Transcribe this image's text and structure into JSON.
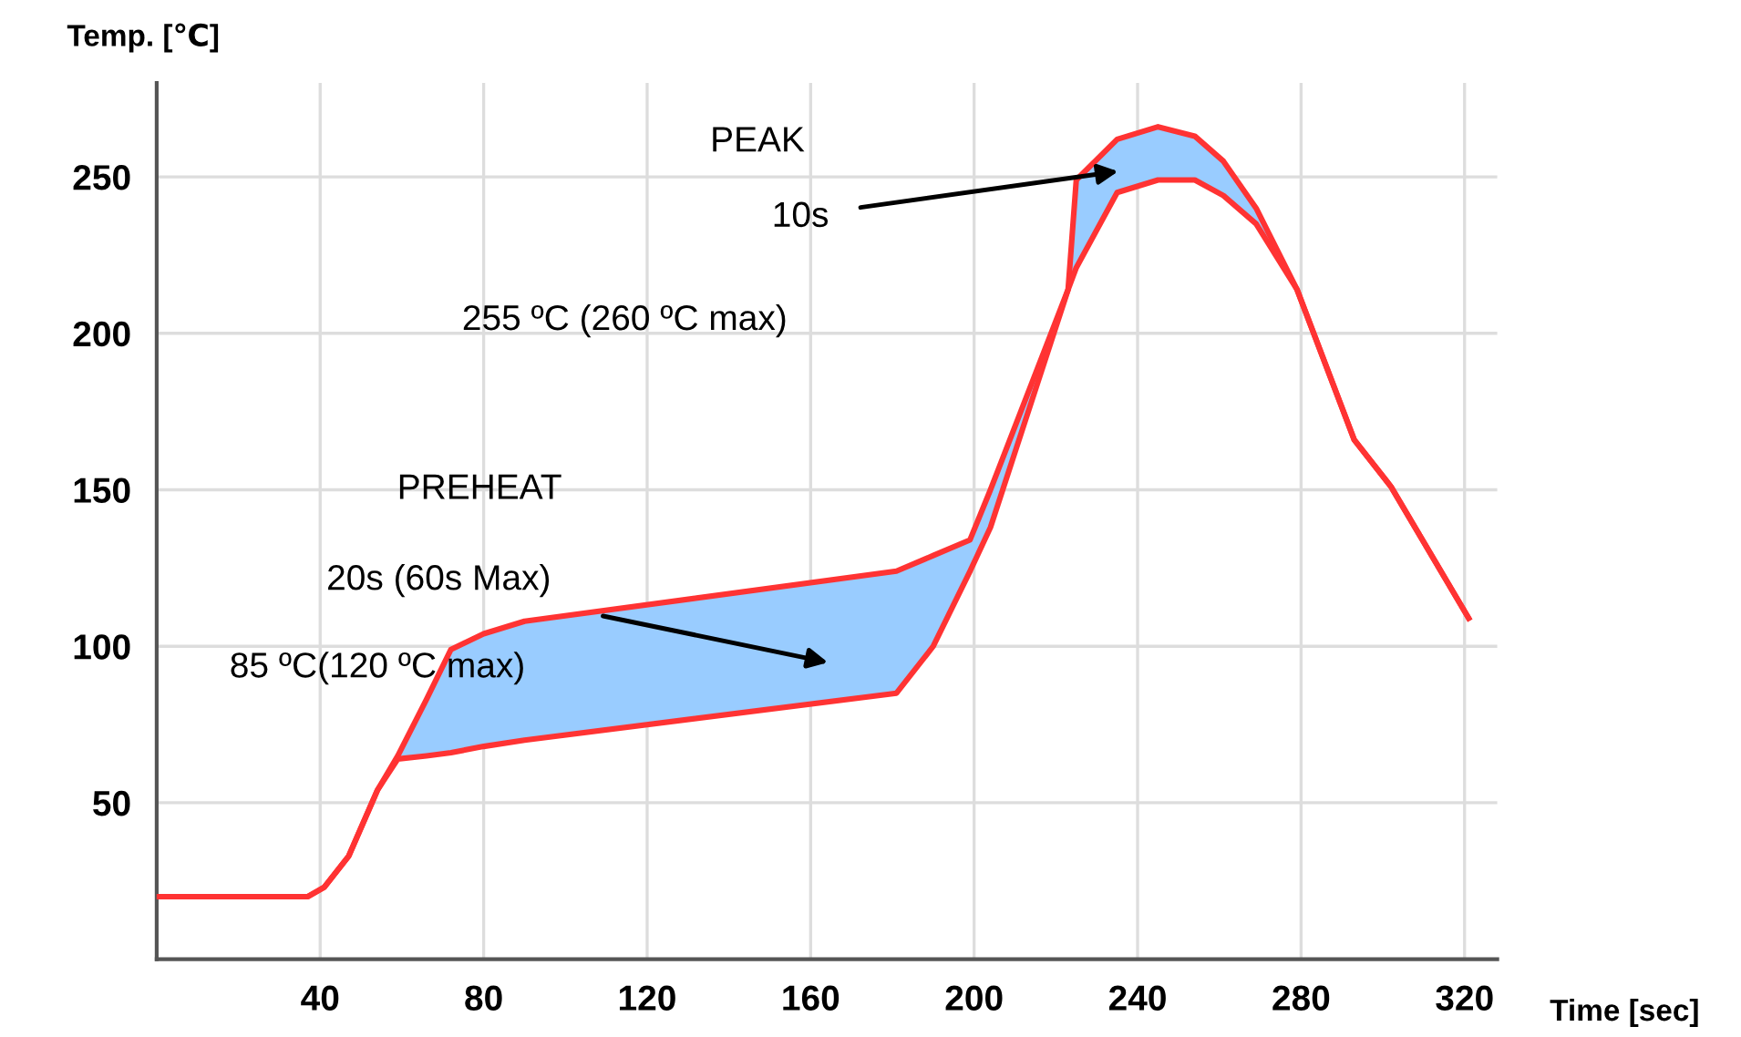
{
  "chart_data": {
    "type": "line",
    "xlabel": "Time [sec]",
    "ylabel": "Temp. [℃]",
    "xlim": [
      0,
      328
    ],
    "ylim": [
      0,
      280
    ],
    "xticks": [
      40,
      80,
      120,
      160,
      200,
      240,
      280,
      320
    ],
    "yticks": [
      50,
      100,
      150,
      200,
      250
    ],
    "grid": true,
    "marker": "none",
    "line_style": "solid",
    "series": [
      {
        "color": "#ff3333",
        "x": [
          0,
          37,
          41,
          47,
          54,
          59,
          66,
          72,
          80,
          90,
          181,
          190,
          199,
          204,
          223,
          225,
          235,
          245,
          254,
          261,
          269,
          279,
          293,
          302,
          321
        ],
        "values": [
          20,
          20,
          23,
          33,
          54,
          65,
          83,
          99,
          104,
          108,
          124,
          129,
          134,
          150,
          214,
          249,
          262,
          266,
          263,
          255,
          240,
          214,
          166,
          151,
          109
        ],
        "lower": [
          20,
          20,
          23,
          33,
          54,
          64,
          65,
          66,
          68,
          70,
          85,
          100,
          124,
          138,
          214,
          221,
          245,
          249,
          249,
          244,
          235,
          214,
          166,
          151,
          109
        ],
        "upper": [
          20,
          20,
          23,
          33,
          54,
          65,
          83,
          99,
          104,
          108,
          124,
          129,
          134,
          150,
          214,
          249,
          262,
          266,
          263,
          255,
          240,
          214,
          166,
          151,
          109
        ]
      },
      {
        "color": "#ff3333",
        "x": [
          0,
          37,
          41,
          47,
          54,
          59,
          66,
          72,
          80,
          90,
          181,
          190,
          199,
          204,
          223,
          225,
          235,
          245,
          254,
          261,
          269,
          279,
          293,
          302,
          321
        ],
        "values": [
          20,
          20,
          23,
          33,
          54,
          64,
          65,
          66,
          68,
          70,
          85,
          100,
          124,
          138,
          214,
          221,
          245,
          249,
          249,
          244,
          235,
          214,
          166,
          151,
          109
        ]
      }
    ],
    "annotations": [
      "PEAK",
      "10s",
      "255 ºC (260 ºC max)",
      "PREHEAT",
      "20s (60s Max)",
      "85 ºC(120 ºC max)"
    ]
  }
}
